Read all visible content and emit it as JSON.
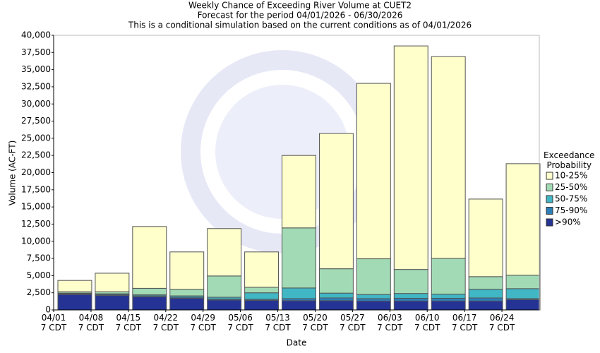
{
  "chart_data": {
    "type": "stacked_bar",
    "title": "Weekly Chance of Exceeding River Volume at CUET2",
    "subtitle": "Forecast for the period 04/01/2026 - 06/30/2026",
    "note": "This is a conditional simulation based on the current conditions as of 04/01/2026",
    "x_label": "Date",
    "y_label": "Volume (AC-FT)",
    "legend_title": "Exceedance\nProbability",
    "legend": "right",
    "categories": [
      "04/01\n7 CDT",
      "04/08\n7 CDT",
      "04/15\n7 CDT",
      "04/22\n7 CDT",
      "04/29\n7 CDT",
      "05/06\n7 CDT",
      "05/13\n7 CDT",
      "05/20\n7 CDT",
      "05/27\n7 CDT",
      "06/03\n7 CDT",
      "06/10\n7 CDT",
      "06/17\n7 CDT",
      "06/24\n7 CDT"
    ],
    "series": [
      {
        "name": ">90%",
        "color": "#253494",
        "values": [
          2250,
          2100,
          1900,
          1700,
          1450,
          1400,
          1350,
          1350,
          1300,
          1300,
          1300,
          1300,
          1500
        ]
      },
      {
        "name": "75-90%",
        "color": "#2c7fb8",
        "values": [
          100,
          150,
          150,
          150,
          150,
          150,
          300,
          400,
          350,
          400,
          400,
          450,
          150
        ]
      },
      {
        "name": "50-75%",
        "color": "#41b6c4",
        "values": [
          100,
          100,
          150,
          200,
          250,
          950,
          1550,
          700,
          600,
          700,
          600,
          1250,
          1450
        ]
      },
      {
        "name": "25-50%",
        "color": "#a1dab4",
        "values": [
          200,
          300,
          950,
          950,
          3100,
          800,
          8750,
          3550,
          5200,
          3500,
          5200,
          1850,
          1950
        ]
      },
      {
        "name": "10-25%",
        "color": "#ffffcc",
        "values": [
          1650,
          2700,
          9000,
          5450,
          6900,
          5150,
          10550,
          19700,
          25550,
          32550,
          29400,
          11300,
          16250
        ]
      }
    ],
    "ylim": [
      0,
      40000
    ],
    "yticks": [
      0,
      {
        "value": 2500,
        "label": "2,500"
      },
      {
        "value": 5000,
        "label": "5,000"
      },
      {
        "value": 7500,
        "label": "7,500"
      },
      {
        "value": 10000,
        "label": "10,000"
      },
      {
        "value": 12500,
        "label": "12,500"
      },
      {
        "value": 15000,
        "label": "15,000"
      },
      {
        "value": 17500,
        "label": "17,500"
      },
      {
        "value": 20000,
        "label": "20,000"
      },
      {
        "value": 22500,
        "label": "22,500"
      },
      {
        "value": 25000,
        "label": "25,000"
      },
      {
        "value": 27500,
        "label": "27,500"
      },
      {
        "value": 30000,
        "label": "30,000"
      },
      {
        "value": 32500,
        "label": "32,500"
      },
      {
        "value": 35000,
        "label": "35,000"
      },
      {
        "value": 37500,
        "label": "37,500"
      },
      {
        "value": 40000,
        "label": "40,000"
      }
    ],
    "grid": false
  }
}
